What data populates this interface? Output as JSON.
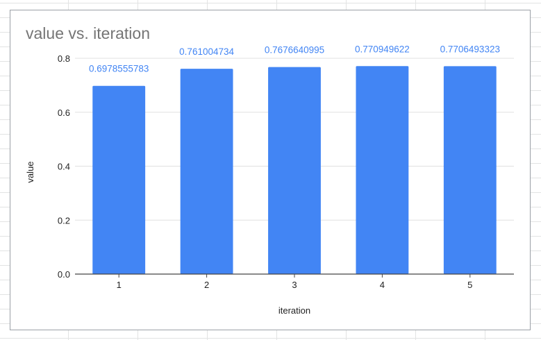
{
  "chart_data": {
    "type": "bar",
    "title": "value vs. iteration",
    "xlabel": "iteration",
    "ylabel": "value",
    "categories": [
      "1",
      "2",
      "3",
      "4",
      "5"
    ],
    "values": [
      0.6978555783,
      0.761004734,
      0.7676640995,
      0.770949622,
      0.7706493323
    ],
    "data_labels": [
      "0.6978555783",
      "0.761004734",
      "0.7676640995",
      "0.770949622",
      "0.7706493323"
    ],
    "yticks": [
      "0.0",
      "0.2",
      "0.4",
      "0.6",
      "0.8"
    ],
    "ylim": [
      0,
      0.8
    ],
    "grid": true,
    "legend": "none",
    "colors": {
      "bar": "#4285f4",
      "label": "#4285f4",
      "grid": "#e0e0e0",
      "axis": "#444444"
    }
  }
}
